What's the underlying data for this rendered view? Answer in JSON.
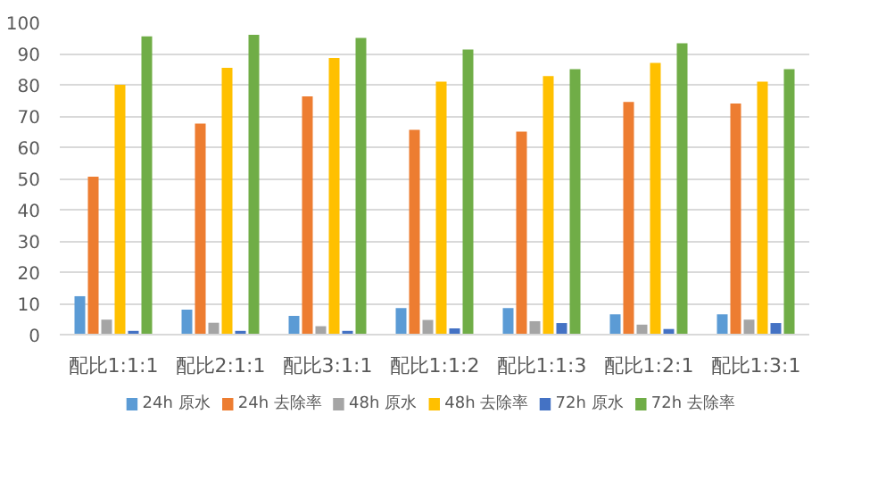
{
  "chart_data": {
    "type": "bar",
    "categories": [
      "配比1:1:1",
      "配比2:1:1",
      "配比3:1:1",
      "配比1:1:2",
      "配比1:1:3",
      "配比1:2:1",
      "配比1:3:1"
    ],
    "series": [
      {
        "name": "24h 原水",
        "color": "#5b9bd5",
        "values": [
          12.3,
          8,
          6,
          8.5,
          8.5,
          6.5,
          6.5
        ]
      },
      {
        "name": "24h 去除率",
        "color": "#ed7d31",
        "values": [
          50.6,
          67.6,
          76.3,
          65.6,
          65,
          74.5,
          74
        ]
      },
      {
        "name": "48h 原水",
        "color": "#a5a5a5",
        "values": [
          4.8,
          3.8,
          2.7,
          4.7,
          4.3,
          3.2,
          4.8
        ]
      },
      {
        "name": "48h 去除率",
        "color": "#ffc000",
        "values": [
          80,
          85.4,
          88.6,
          81,
          82.8,
          87,
          81
        ]
      },
      {
        "name": "72h 原水",
        "color": "#4472c4",
        "values": [
          1.2,
          1.2,
          1.2,
          2,
          3.7,
          1.8,
          3.7
        ]
      },
      {
        "name": "72h 去除率",
        "color": "#70ad47",
        "values": [
          95.5,
          96,
          95,
          91.3,
          85,
          93.3,
          85
        ]
      }
    ],
    "ylim": [
      0,
      100
    ],
    "yticks": [
      0,
      10,
      20,
      30,
      40,
      50,
      60,
      70,
      80,
      90,
      100
    ],
    "grid": "y",
    "legend": "bottom"
  }
}
